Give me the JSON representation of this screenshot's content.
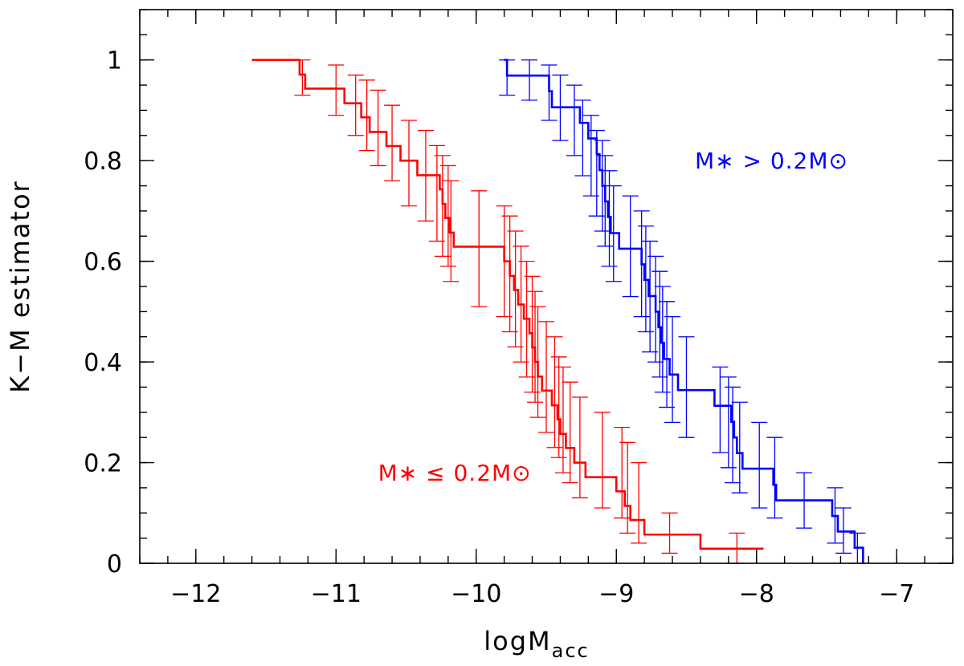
{
  "chart_data": {
    "type": "line",
    "step": true,
    "xlabel": "logM",
    "xlabel_sub": "acc",
    "ylabel": "K−M estimator",
    "xlim": [
      -12.4,
      -6.6
    ],
    "ylim": [
      0,
      1.1
    ],
    "x_ticks": [
      -12,
      -11,
      -10,
      -9,
      -8,
      -7
    ],
    "x_tick_labels": [
      "−12",
      "−11",
      "−10",
      "−9",
      "−8",
      "−7"
    ],
    "y_ticks": [
      0,
      0.2,
      0.4,
      0.6,
      0.8,
      1
    ],
    "y_tick_labels": [
      "0",
      "0.2",
      "0.4",
      "0.6",
      "0.8",
      "1"
    ],
    "x_minor_step": 0.2,
    "y_minor_step": 0.05,
    "series": [
      {
        "name": "low-mass",
        "label": "M∗ ≤ 0.2M⊙",
        "color": "#ff0000",
        "steps": [
          [
            -11.6,
            1.0
          ],
          [
            -11.26,
            0.971
          ],
          [
            -11.22,
            0.943
          ],
          [
            -10.94,
            0.914
          ],
          [
            -10.82,
            0.886
          ],
          [
            -10.76,
            0.857
          ],
          [
            -10.64,
            0.829
          ],
          [
            -10.54,
            0.8
          ],
          [
            -10.42,
            0.771
          ],
          [
            -10.26,
            0.743
          ],
          [
            -10.24,
            0.714
          ],
          [
            -10.22,
            0.686
          ],
          [
            -10.19,
            0.657
          ],
          [
            -10.16,
            0.629
          ],
          [
            -9.8,
            0.6
          ],
          [
            -9.76,
            0.571
          ],
          [
            -9.73,
            0.543
          ],
          [
            -9.7,
            0.514
          ],
          [
            -9.66,
            0.486
          ],
          [
            -9.62,
            0.457
          ],
          [
            -9.6,
            0.429
          ],
          [
            -9.58,
            0.4
          ],
          [
            -9.56,
            0.371
          ],
          [
            -9.53,
            0.343
          ],
          [
            -9.46,
            0.314
          ],
          [
            -9.42,
            0.286
          ],
          [
            -9.4,
            0.257
          ],
          [
            -9.36,
            0.229
          ],
          [
            -9.3,
            0.2
          ],
          [
            -9.22,
            0.171
          ],
          [
            -9.0,
            0.143
          ],
          [
            -8.94,
            0.114
          ],
          [
            -8.9,
            0.086
          ],
          [
            -8.8,
            0.057
          ],
          [
            -8.4,
            0.029
          ],
          [
            -7.95,
            0.029
          ]
        ],
        "errorbars": [
          {
            "x": -11.24,
            "y": 0.97,
            "lo": 0.93,
            "hi": 1.0
          },
          {
            "x": -11.0,
            "y": 0.94,
            "lo": 0.89,
            "hi": 0.99
          },
          {
            "x": -10.86,
            "y": 0.91,
            "lo": 0.85,
            "hi": 0.97
          },
          {
            "x": -10.78,
            "y": 0.89,
            "lo": 0.82,
            "hi": 0.96
          },
          {
            "x": -10.7,
            "y": 0.86,
            "lo": 0.79,
            "hi": 0.94
          },
          {
            "x": -10.6,
            "y": 0.83,
            "lo": 0.76,
            "hi": 0.91
          },
          {
            "x": -10.48,
            "y": 0.8,
            "lo": 0.71,
            "hi": 0.88
          },
          {
            "x": -10.36,
            "y": 0.77,
            "lo": 0.68,
            "hi": 0.86
          },
          {
            "x": -10.28,
            "y": 0.74,
            "lo": 0.64,
            "hi": 0.83
          },
          {
            "x": -10.24,
            "y": 0.71,
            "lo": 0.61,
            "hi": 0.81
          },
          {
            "x": -10.2,
            "y": 0.69,
            "lo": 0.59,
            "hi": 0.79
          },
          {
            "x": -10.18,
            "y": 0.66,
            "lo": 0.56,
            "hi": 0.76
          },
          {
            "x": -9.98,
            "y": 0.63,
            "lo": 0.51,
            "hi": 0.74
          },
          {
            "x": -9.8,
            "y": 0.6,
            "lo": 0.49,
            "hi": 0.71
          },
          {
            "x": -9.76,
            "y": 0.57,
            "lo": 0.46,
            "hi": 0.69
          },
          {
            "x": -9.72,
            "y": 0.54,
            "lo": 0.43,
            "hi": 0.66
          },
          {
            "x": -9.68,
            "y": 0.51,
            "lo": 0.4,
            "hi": 0.63
          },
          {
            "x": -9.64,
            "y": 0.49,
            "lo": 0.37,
            "hi": 0.6
          },
          {
            "x": -9.6,
            "y": 0.46,
            "lo": 0.34,
            "hi": 0.57
          },
          {
            "x": -9.58,
            "y": 0.43,
            "lo": 0.32,
            "hi": 0.54
          },
          {
            "x": -9.56,
            "y": 0.4,
            "lo": 0.29,
            "hi": 0.51
          },
          {
            "x": -9.5,
            "y": 0.37,
            "lo": 0.26,
            "hi": 0.48
          },
          {
            "x": -9.44,
            "y": 0.34,
            "lo": 0.23,
            "hi": 0.45
          },
          {
            "x": -9.41,
            "y": 0.31,
            "lo": 0.21,
            "hi": 0.41
          },
          {
            "x": -9.38,
            "y": 0.29,
            "lo": 0.18,
            "hi": 0.39
          },
          {
            "x": -9.33,
            "y": 0.26,
            "lo": 0.16,
            "hi": 0.36
          },
          {
            "x": -9.26,
            "y": 0.23,
            "lo": 0.13,
            "hi": 0.33
          },
          {
            "x": -9.1,
            "y": 0.2,
            "lo": 0.11,
            "hi": 0.3
          },
          {
            "x": -8.96,
            "y": 0.17,
            "lo": 0.09,
            "hi": 0.27
          },
          {
            "x": -8.92,
            "y": 0.14,
            "lo": 0.06,
            "hi": 0.24
          },
          {
            "x": -8.84,
            "y": 0.11,
            "lo": 0.04,
            "hi": 0.2
          },
          {
            "x": -8.62,
            "y": 0.06,
            "lo": 0.02,
            "hi": 0.1
          },
          {
            "x": -8.14,
            "y": 0.03,
            "lo": 0.0,
            "hi": 0.06
          }
        ]
      },
      {
        "name": "high-mass",
        "label": "M∗ > 0.2M⊙",
        "color": "#0000ff",
        "steps": [
          [
            -9.8,
            1.0
          ],
          [
            -9.78,
            0.969
          ],
          [
            -9.48,
            0.938
          ],
          [
            -9.46,
            0.906
          ],
          [
            -9.26,
            0.875
          ],
          [
            -9.2,
            0.844
          ],
          [
            -9.14,
            0.813
          ],
          [
            -9.12,
            0.781
          ],
          [
            -9.1,
            0.75
          ],
          [
            -9.08,
            0.719
          ],
          [
            -9.06,
            0.688
          ],
          [
            -9.04,
            0.656
          ],
          [
            -8.98,
            0.625
          ],
          [
            -8.82,
            0.594
          ],
          [
            -8.8,
            0.563
          ],
          [
            -8.77,
            0.531
          ],
          [
            -8.72,
            0.5
          ],
          [
            -8.7,
            0.469
          ],
          [
            -8.68,
            0.438
          ],
          [
            -8.66,
            0.406
          ],
          [
            -8.62,
            0.375
          ],
          [
            -8.56,
            0.344
          ],
          [
            -8.3,
            0.313
          ],
          [
            -8.18,
            0.281
          ],
          [
            -8.16,
            0.25
          ],
          [
            -8.14,
            0.219
          ],
          [
            -8.1,
            0.188
          ],
          [
            -7.88,
            0.156
          ],
          [
            -7.86,
            0.125
          ],
          [
            -7.46,
            0.094
          ],
          [
            -7.42,
            0.063
          ],
          [
            -7.3,
            0.031
          ],
          [
            -7.24,
            0.0
          ]
        ],
        "errorbars": [
          {
            "x": -9.78,
            "y": 0.97,
            "lo": 0.93,
            "hi": 1.0
          },
          {
            "x": -9.62,
            "y": 0.96,
            "lo": 0.92,
            "hi": 1.0
          },
          {
            "x": -9.48,
            "y": 0.94,
            "lo": 0.88,
            "hi": 0.99
          },
          {
            "x": -9.4,
            "y": 0.91,
            "lo": 0.84,
            "hi": 0.97
          },
          {
            "x": -9.3,
            "y": 0.88,
            "lo": 0.81,
            "hi": 0.95
          },
          {
            "x": -9.24,
            "y": 0.84,
            "lo": 0.77,
            "hi": 0.92
          },
          {
            "x": -9.18,
            "y": 0.81,
            "lo": 0.73,
            "hi": 0.89
          },
          {
            "x": -9.14,
            "y": 0.78,
            "lo": 0.69,
            "hi": 0.86
          },
          {
            "x": -9.1,
            "y": 0.75,
            "lo": 0.66,
            "hi": 0.84
          },
          {
            "x": -9.08,
            "y": 0.72,
            "lo": 0.63,
            "hi": 0.81
          },
          {
            "x": -9.05,
            "y": 0.69,
            "lo": 0.59,
            "hi": 0.78
          },
          {
            "x": -9.02,
            "y": 0.66,
            "lo": 0.56,
            "hi": 0.75
          },
          {
            "x": -8.9,
            "y": 0.63,
            "lo": 0.53,
            "hi": 0.73
          },
          {
            "x": -8.82,
            "y": 0.59,
            "lo": 0.49,
            "hi": 0.7
          },
          {
            "x": -8.79,
            "y": 0.56,
            "lo": 0.46,
            "hi": 0.67
          },
          {
            "x": -8.76,
            "y": 0.53,
            "lo": 0.42,
            "hi": 0.64
          },
          {
            "x": -8.72,
            "y": 0.5,
            "lo": 0.4,
            "hi": 0.61
          },
          {
            "x": -8.69,
            "y": 0.47,
            "lo": 0.37,
            "hi": 0.58
          },
          {
            "x": -8.67,
            "y": 0.44,
            "lo": 0.34,
            "hi": 0.55
          },
          {
            "x": -8.64,
            "y": 0.41,
            "lo": 0.31,
            "hi": 0.52
          },
          {
            "x": -8.6,
            "y": 0.38,
            "lo": 0.28,
            "hi": 0.49
          },
          {
            "x": -8.5,
            "y": 0.34,
            "lo": 0.25,
            "hi": 0.45
          },
          {
            "x": -8.26,
            "y": 0.31,
            "lo": 0.22,
            "hi": 0.39
          },
          {
            "x": -8.2,
            "y": 0.28,
            "lo": 0.19,
            "hi": 0.37
          },
          {
            "x": -8.17,
            "y": 0.25,
            "lo": 0.16,
            "hi": 0.35
          },
          {
            "x": -8.12,
            "y": 0.22,
            "lo": 0.14,
            "hi": 0.32
          },
          {
            "x": -7.98,
            "y": 0.19,
            "lo": 0.11,
            "hi": 0.28
          },
          {
            "x": -7.87,
            "y": 0.16,
            "lo": 0.09,
            "hi": 0.25
          },
          {
            "x": -7.66,
            "y": 0.13,
            "lo": 0.07,
            "hi": 0.18
          },
          {
            "x": -7.44,
            "y": 0.09,
            "lo": 0.04,
            "hi": 0.15
          },
          {
            "x": -7.38,
            "y": 0.06,
            "lo": 0.02,
            "hi": 0.11
          },
          {
            "x": -7.28,
            "y": 0.03,
            "lo": 0.0,
            "hi": 0.06
          }
        ]
      }
    ],
    "annotations": [
      {
        "text": "M∗ ≤ 0.2M⊙",
        "series": "low-mass",
        "x": -10.7,
        "y": 0.18
      },
      {
        "text": "M∗ > 0.2M⊙",
        "series": "high-mass",
        "x": -8.44,
        "y": 0.8
      }
    ]
  }
}
